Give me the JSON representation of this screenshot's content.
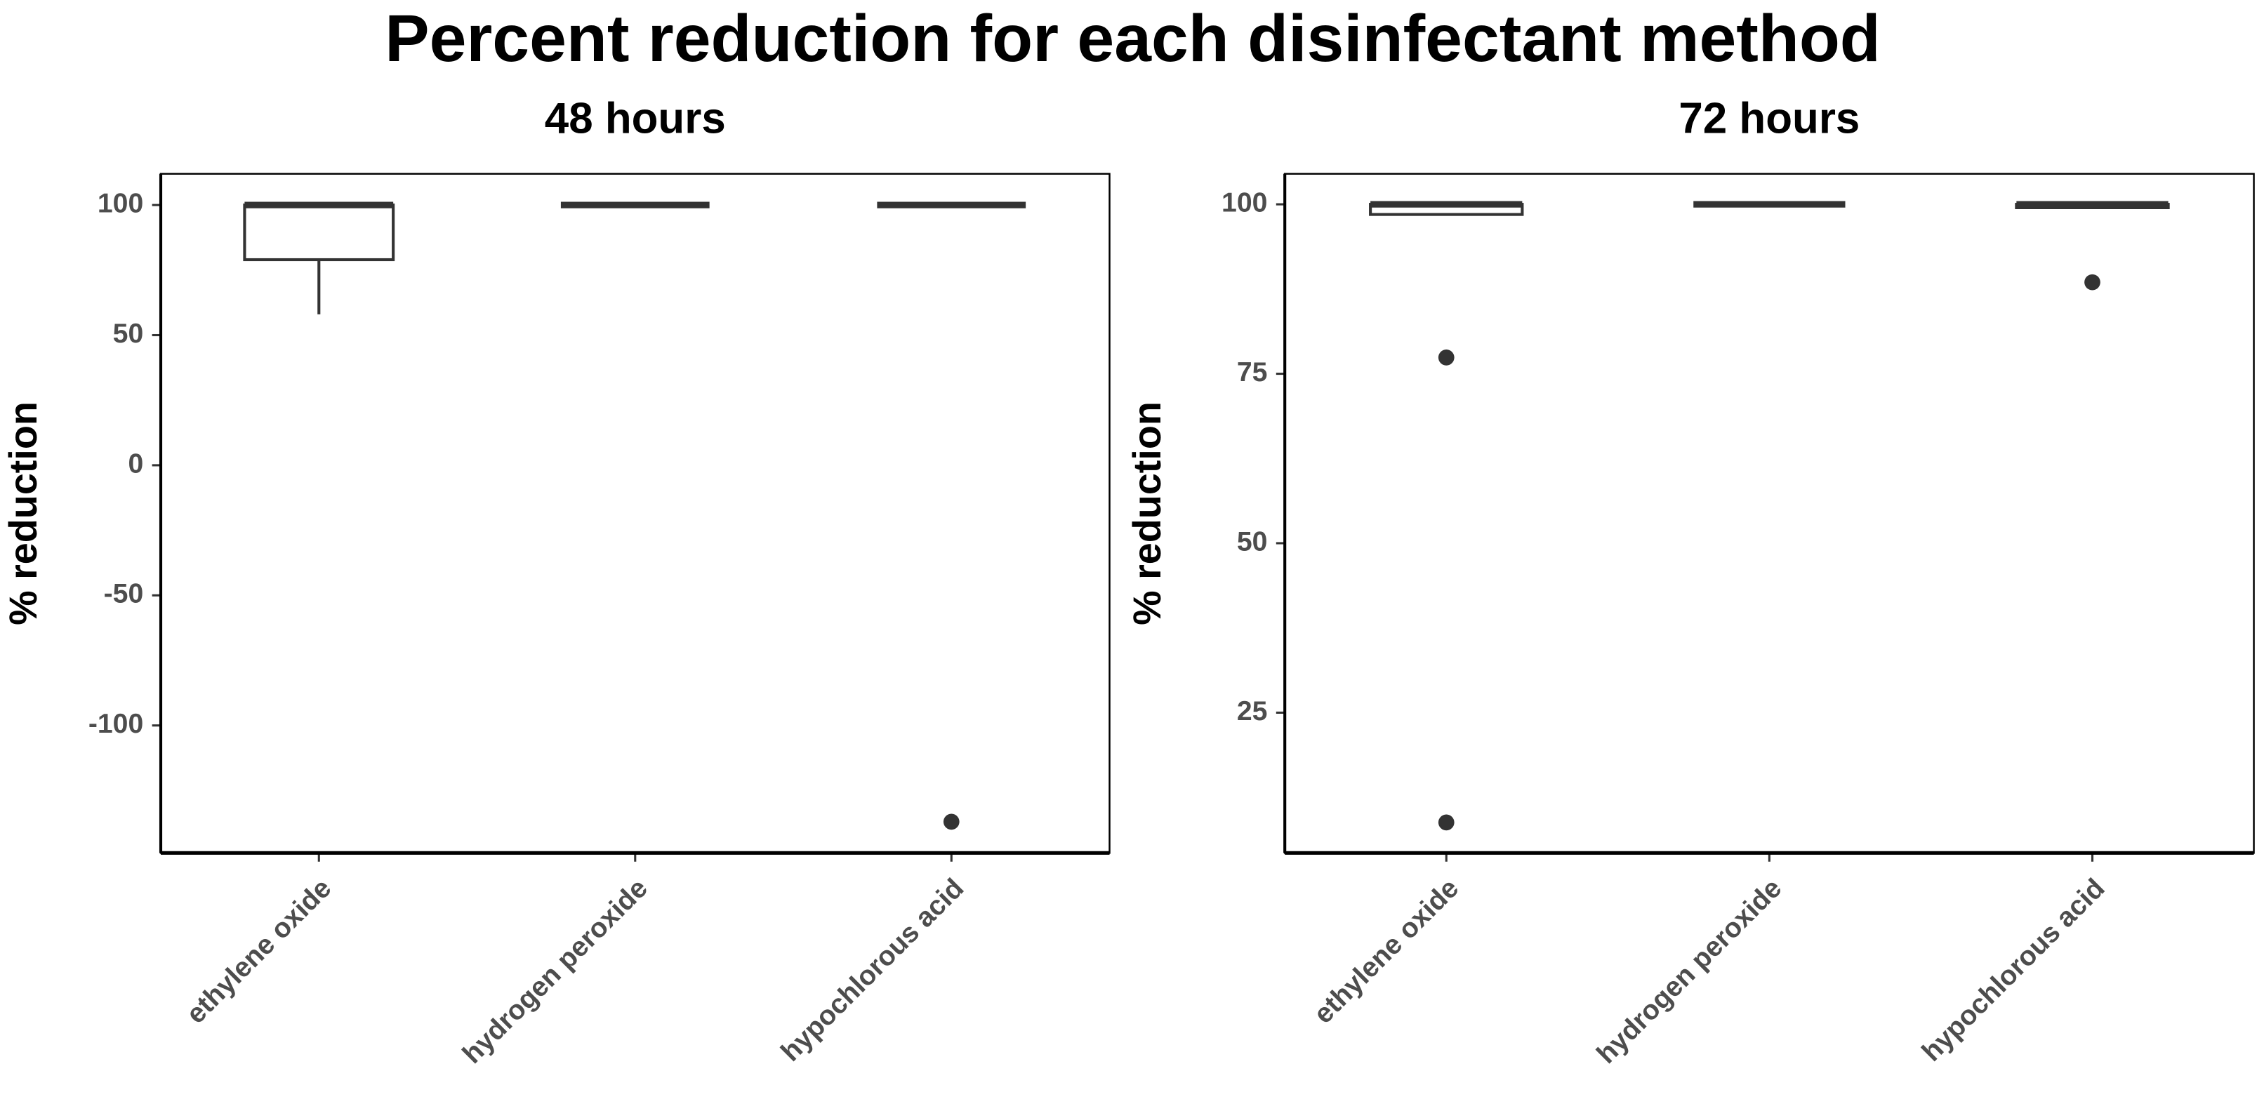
{
  "title": "Percent reduction for each disinfectant method",
  "chart_data": [
    {
      "type": "box",
      "title": "48 hours",
      "y_label": "% reduction",
      "categories": [
        "ethylene oxide",
        "hydrogen peroxide",
        "hypochlorous acid"
      ],
      "min": [
        58,
        100,
        100
      ],
      "q1": [
        79,
        100,
        100
      ],
      "median": [
        100,
        100,
        100
      ],
      "q3": [
        100,
        100,
        100
      ],
      "max": [
        100,
        100,
        100
      ],
      "outliers": [
        [],
        [],
        [
          -137
        ]
      ],
      "color": "#333333",
      "ylim": [
        -149,
        112
      ],
      "yticks": [
        -100,
        -50,
        0,
        50,
        100
      ]
    },
    {
      "type": "box",
      "title": "72 hours",
      "y_label": "% reduction",
      "categories": [
        "ethylene oxide",
        "hydrogen peroxide",
        "hypochlorous acid"
      ],
      "min": [
        98.5,
        100,
        99.5
      ],
      "q1": [
        98.5,
        100,
        99.5
      ],
      "median": [
        100,
        100,
        100
      ],
      "q3": [
        100,
        100,
        100
      ],
      "max": [
        100,
        100,
        100
      ],
      "outliers": [
        [
          77.4,
          8.8
        ],
        [],
        [
          88.5
        ]
      ],
      "color": "#333333",
      "ylim": [
        4.3,
        104.5
      ],
      "yticks": [
        25,
        50,
        75,
        100
      ]
    }
  ]
}
